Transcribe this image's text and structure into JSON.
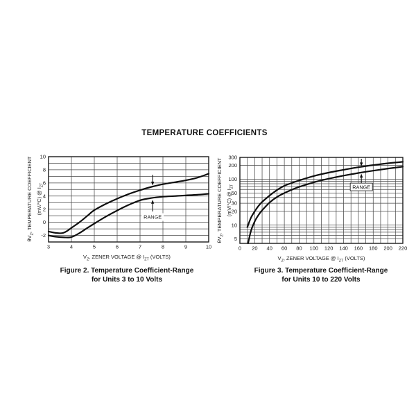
{
  "page": {
    "title": "TEMPERATURE COEFFICIENTS"
  },
  "chart_data": [
    {
      "id": "figure-2",
      "type": "line",
      "title": "Figure 2. Temperature Coefficient-Range for Units 3 to 10 Volts",
      "captions": [
        "Figure 2. Temperature Coefficient-Range",
        "for Units 3 to 10 Volts"
      ],
      "xlabel": "V_{Z}, ZENER VOLTAGE @ I_{ZT} (VOLTS)",
      "ylabel_line1": "θV_{Z}, TEMPERATURE COEFFICIENT",
      "ylabel_line2": "(mV/°C) @ I_{ZT}",
      "x_scale": "linear",
      "xlim": [
        3,
        10
      ],
      "x_ticks": [
        3,
        4,
        5,
        6,
        7,
        8,
        9,
        10
      ],
      "x_gridlines": [
        4,
        5,
        6,
        7,
        8,
        9
      ],
      "y_scale": "linear",
      "ylim": [
        -3,
        10
      ],
      "y_ticks": [
        10,
        8,
        6,
        4,
        2,
        0,
        -2
      ],
      "y_gridlines": [
        -2,
        -1,
        0,
        1,
        2,
        3,
        4,
        5,
        6,
        7,
        8,
        9
      ],
      "grid": true,
      "series": [
        {
          "name": "upper-limit",
          "points": [
            [
              3,
              -1.4
            ],
            [
              3.3,
              -1.62
            ],
            [
              3.6,
              -1.65
            ],
            [
              3.8,
              -1.35
            ],
            [
              4,
              -0.85
            ],
            [
              4.35,
              0
            ],
            [
              4.7,
              1.0
            ],
            [
              5,
              1.85
            ],
            [
              5.5,
              2.8
            ],
            [
              6,
              3.6
            ],
            [
              6.5,
              4.3
            ],
            [
              7,
              4.9
            ],
            [
              7.5,
              5.4
            ],
            [
              8,
              5.8
            ],
            [
              8.5,
              6.1
            ],
            [
              9,
              6.4
            ],
            [
              9.5,
              6.8
            ],
            [
              10,
              7.4
            ]
          ]
        },
        {
          "name": "lower-limit",
          "points": [
            [
              3,
              -2.0
            ],
            [
              3.3,
              -2.2
            ],
            [
              3.7,
              -2.3
            ],
            [
              4,
              -2.25
            ],
            [
              4.3,
              -1.75
            ],
            [
              4.7,
              -0.85
            ],
            [
              5,
              -0.2
            ],
            [
              5.5,
              0.85
            ],
            [
              6,
              1.8
            ],
            [
              6.5,
              2.65
            ],
            [
              7,
              3.35
            ],
            [
              7.5,
              3.7
            ],
            [
              8,
              3.9
            ],
            [
              8.5,
              4.0
            ],
            [
              9,
              4.1
            ],
            [
              9.5,
              4.2
            ],
            [
              10,
              4.35
            ]
          ]
        }
      ],
      "annotation": {
        "label": "RANGE",
        "x": 7.55,
        "label_y": 0.8,
        "boxed": false,
        "arrows": [
          {
            "from_y": 7.25,
            "to_y": 5.62
          },
          {
            "from_y": 1.65,
            "to_y": 3.42
          }
        ]
      }
    },
    {
      "id": "figure-3",
      "type": "line",
      "title": "Figure 3. Temperature Coefficient-Range for Units 10 to 220 Volts",
      "captions": [
        "Figure 3. Temperature Coefficient-Range",
        "for Units 10 to 220 Volts"
      ],
      "xlabel": "V_{Z}, ZENER VOLTAGE @ I_{ZT} (VOLTS)",
      "ylabel_line1": "θV_{Z}, TEMPERATURE COEFFICIENT",
      "ylabel_line2": "(mV/°C) @ I_{ZT}",
      "x_scale": "linear",
      "xlim": [
        0,
        220
      ],
      "x_ticks": [
        0,
        20,
        40,
        60,
        80,
        100,
        120,
        140,
        160,
        180,
        200,
        220
      ],
      "x_gridlines": [
        10,
        20,
        30,
        40,
        50,
        60,
        70,
        80,
        90,
        100,
        110,
        120,
        130,
        140,
        150,
        160,
        170,
        180,
        190,
        200,
        210
      ],
      "y_scale": "log",
      "ylim": [
        4,
        300
      ],
      "y_ticks": [
        300,
        200,
        100,
        50,
        30,
        20,
        10,
        5
      ],
      "y_gridlines": [
        5,
        6,
        7,
        8,
        9,
        10,
        20,
        30,
        40,
        50,
        60,
        70,
        80,
        90,
        100,
        200
      ],
      "grid": true,
      "series": [
        {
          "name": "upper-limit",
          "points": [
            [
              10,
              9
            ],
            [
              15,
              14.5
            ],
            [
              20,
              20
            ],
            [
              25,
              26
            ],
            [
              30,
              32
            ],
            [
              40,
              44
            ],
            [
              50,
              58
            ],
            [
              60,
              72
            ],
            [
              70,
              83
            ],
            [
              80,
              94
            ],
            [
              100,
              118
            ],
            [
              120,
              140
            ],
            [
              140,
              161
            ],
            [
              160,
              183
            ],
            [
              180,
              204
            ],
            [
              200,
              223
            ],
            [
              220,
              240
            ]
          ]
        },
        {
          "name": "lower-limit",
          "points": [
            [
              11,
              4
            ],
            [
              15,
              7.5
            ],
            [
              20,
              12
            ],
            [
              25,
              16.5
            ],
            [
              30,
              21
            ],
            [
              40,
              31
            ],
            [
              50,
              41
            ],
            [
              60,
              50
            ],
            [
              70,
              59
            ],
            [
              80,
              68
            ],
            [
              100,
              86
            ],
            [
              120,
              103
            ],
            [
              140,
              120
            ],
            [
              160,
              137
            ],
            [
              180,
              154
            ],
            [
              200,
              171
            ],
            [
              220,
              188
            ]
          ]
        }
      ],
      "annotation": {
        "label": "RANGE",
        "x": 164,
        "label_y": 68,
        "boxed": true,
        "arrows": [
          {
            "from_y": 280,
            "to_y": 192
          },
          {
            "from_y": 83,
            "to_y": 132
          }
        ]
      }
    }
  ]
}
